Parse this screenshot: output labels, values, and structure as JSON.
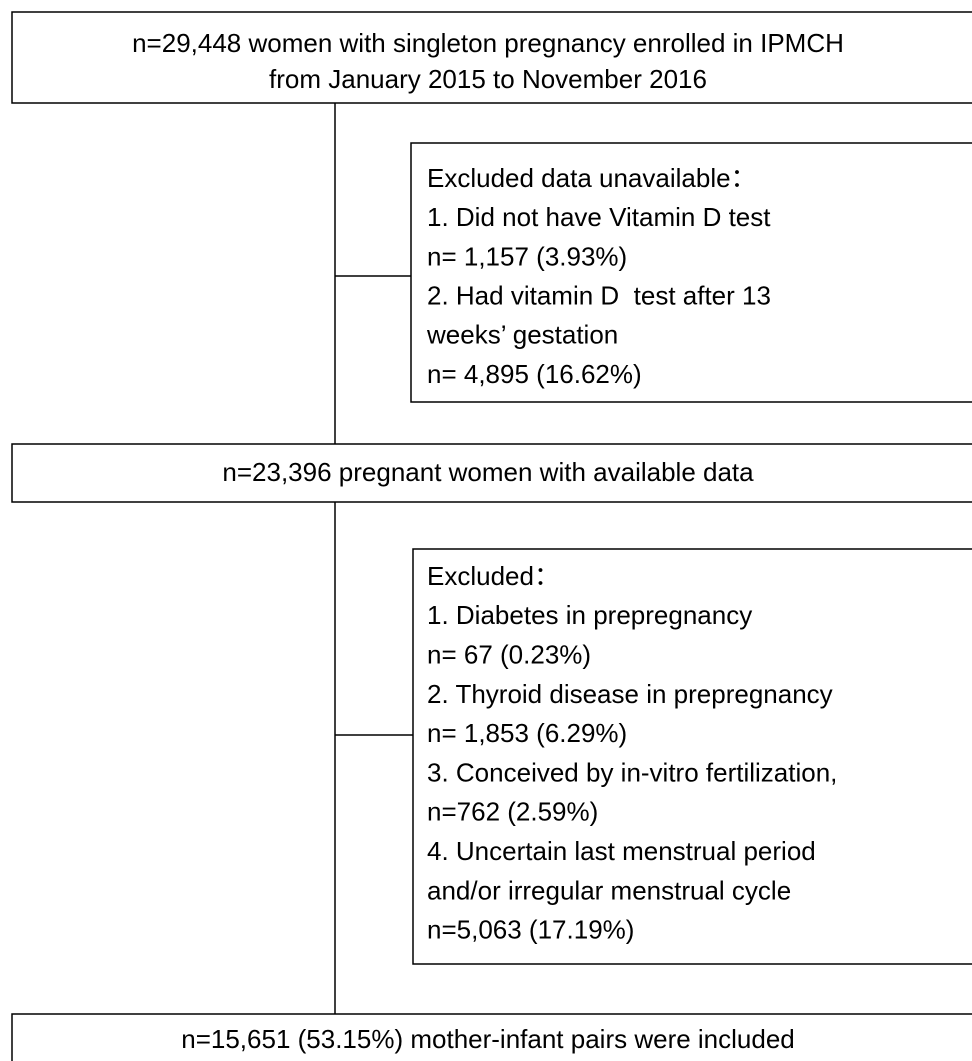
{
  "nodes": [
    {
      "lines": [
        "n=29,448 women with singleton pregnancy enrolled in IPMCH",
        "from January 2015 to November 2016"
      ]
    },
    {
      "lines": [
        "Excluded data unavailable：",
        "1. Did not have Vitamin D test",
        "n= 1,157 (3.93%)",
        "2. Had vitamin D  test after 13",
        "weeks’ gestation",
        "n= 4,895 (16.62%)"
      ]
    },
    {
      "lines": [
        "n=23,396 pregnant women with available data"
      ]
    },
    {
      "lines": [
        "Excluded：",
        "1. Diabetes in prepregnancy",
        "n= 67 (0.23%)",
        "2. Thyroid disease in prepregnancy",
        "n= 1,853 (6.29%)",
        "3. Conceived by in-vitro fertilization,",
        "n=762 (2.59%)",
        "4. Uncertain last menstrual period",
        "and/or irregular menstrual cycle",
        "n=5,063 (17.19%)"
      ]
    },
    {
      "lines": [
        "n=15,651 (53.15%) mother-infant pairs were included"
      ]
    }
  ]
}
